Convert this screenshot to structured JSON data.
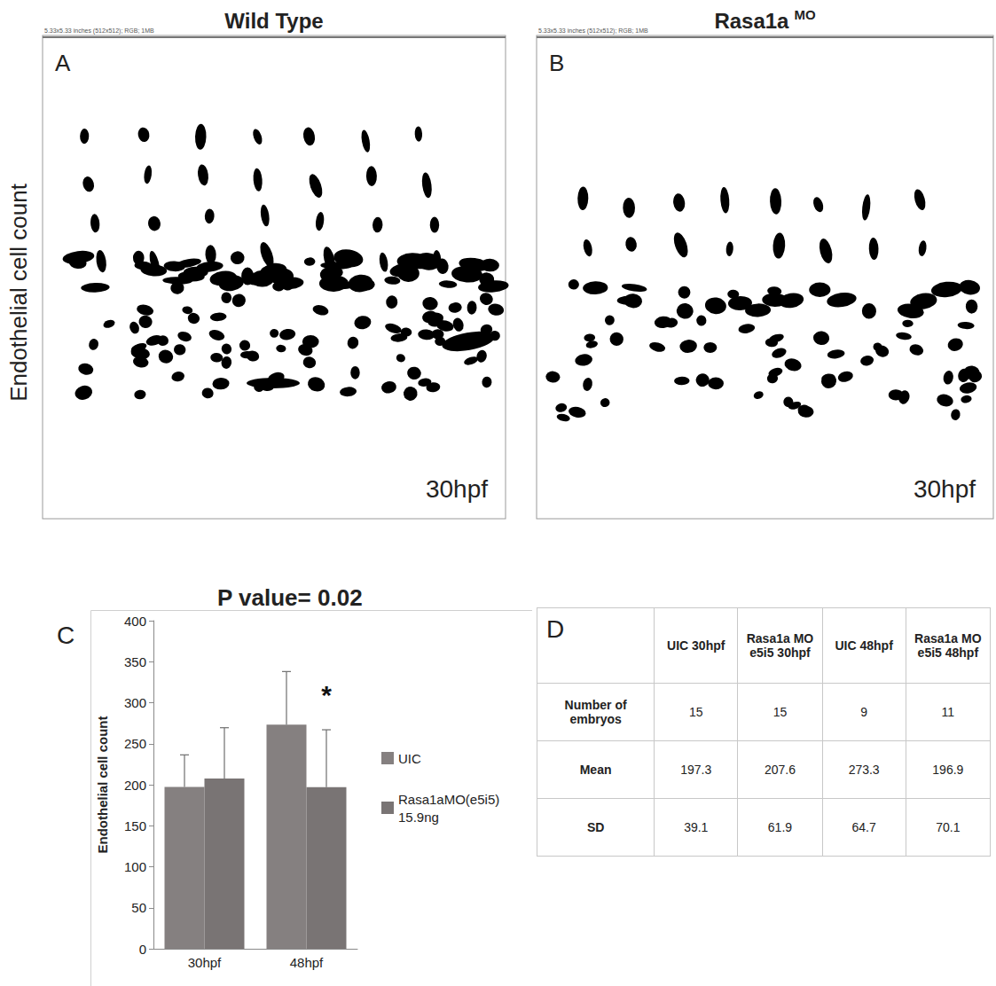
{
  "figure": {
    "side_label": "Endothelial cell count",
    "image_info": "5.33x5.33 inches (512x512); RGB; 1MB"
  },
  "images": [
    {
      "letter": "A",
      "title": "Wild Type",
      "time": "30hpf"
    },
    {
      "letter": "B",
      "title": "Rasa1a",
      "title_superscript": "MO",
      "time": "30hpf"
    }
  ],
  "chart_data": {
    "type": "bar",
    "letter": "C",
    "title": "P value= 0.02",
    "y_label": "Endothelial cell count",
    "categories": [
      "30hpf",
      "48hpf"
    ],
    "series": [
      {
        "name": "UIC",
        "color": "#858080",
        "values": [
          197.3,
          273.3
        ],
        "error": [
          39.1,
          64.7
        ]
      },
      {
        "name": "Rasa1aMO(e5i5) 15.9ng",
        "color": "#797474",
        "values": [
          207.6,
          196.9
        ],
        "error": [
          61.9,
          70.1
        ]
      }
    ],
    "ylim": [
      0,
      400
    ],
    "yticks": [
      0,
      50,
      100,
      150,
      200,
      250,
      300,
      350,
      400
    ],
    "grid": false,
    "legend": "right",
    "annotations": [
      {
        "text": "*",
        "category": "48hpf",
        "series": "Rasa1aMO(e5i5) 15.9ng"
      }
    ]
  },
  "table": {
    "letter": "D",
    "header": [
      "UIC 30hpf",
      "Rasa1a MO e5i5 30hpf",
      "UIC 48hpf",
      "Rasa1a MO e5i5 48hpf"
    ],
    "rows": [
      [
        "Number of embryos",
        15,
        15,
        9,
        11
      ],
      [
        "Mean",
        197.3,
        207.6,
        273.3,
        196.9
      ],
      [
        "SD",
        39.1,
        61.9,
        64.7,
        70.1
      ]
    ]
  }
}
